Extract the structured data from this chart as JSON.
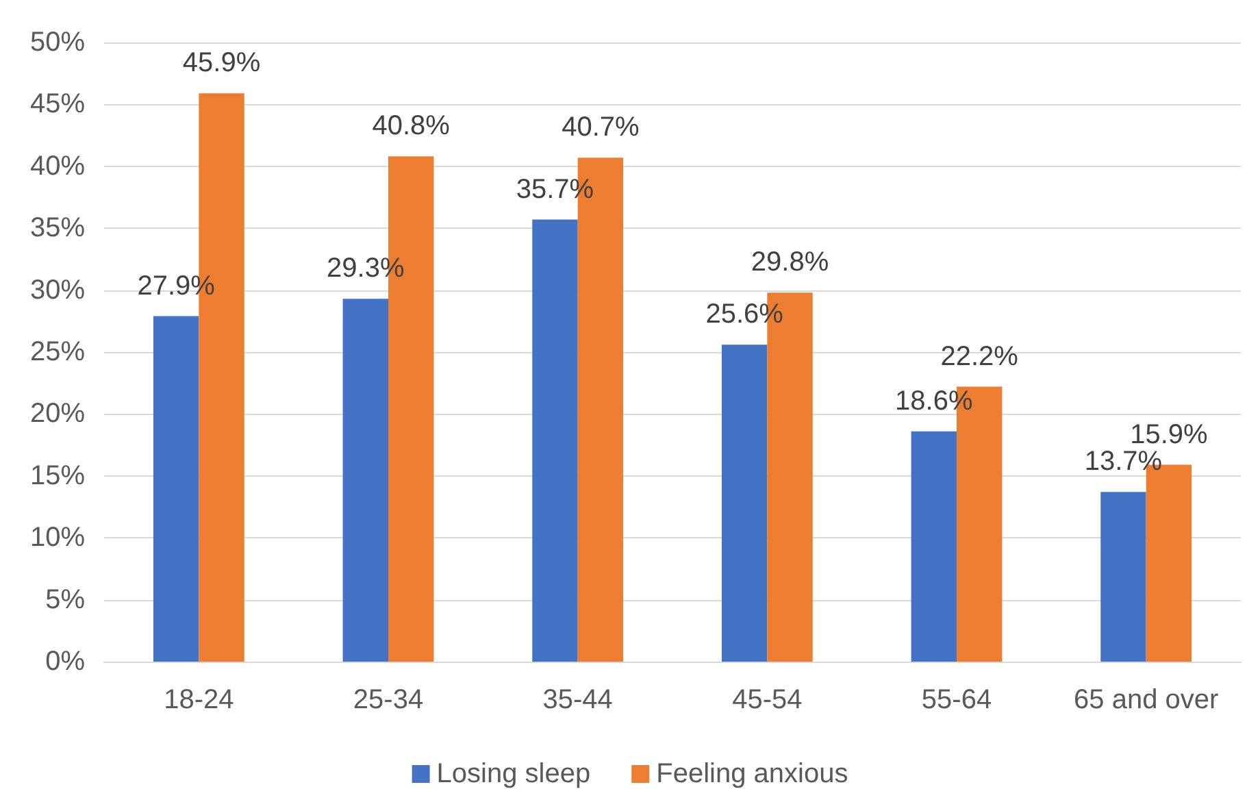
{
  "chart_data": {
    "type": "bar",
    "categories": [
      "18-24",
      "25-34",
      "35-44",
      "45-54",
      "55-64",
      "65 and over"
    ],
    "series": [
      {
        "name": "Losing sleep",
        "color": "#4472c4",
        "values": [
          27.9,
          29.3,
          35.7,
          25.6,
          18.6,
          13.7
        ],
        "value_labels": [
          "27.9%",
          "29.3%",
          "35.7%",
          "25.6%",
          "18.6%",
          "13.7%"
        ]
      },
      {
        "name": "Feeling anxious",
        "color": "#ed7d31",
        "values": [
          45.9,
          40.8,
          40.7,
          29.8,
          22.2,
          15.9
        ],
        "value_labels": [
          "45.9%",
          "40.8%",
          "40.7%",
          "29.8%",
          "22.2%",
          "15.9%"
        ]
      }
    ],
    "ylim": [
      0,
      50
    ],
    "yticks": [
      {
        "value": 0,
        "label": "0%"
      },
      {
        "value": 5,
        "label": "5%"
      },
      {
        "value": 10,
        "label": "10%"
      },
      {
        "value": 15,
        "label": "15%"
      },
      {
        "value": 20,
        "label": "20%"
      },
      {
        "value": 25,
        "label": "25%"
      },
      {
        "value": 30,
        "label": "30%"
      },
      {
        "value": 35,
        "label": "35%"
      },
      {
        "value": 40,
        "label": "40%"
      },
      {
        "value": 45,
        "label": "45%"
      },
      {
        "value": 50,
        "label": "50%"
      }
    ],
    "grid": "y",
    "legend": "bottom"
  }
}
